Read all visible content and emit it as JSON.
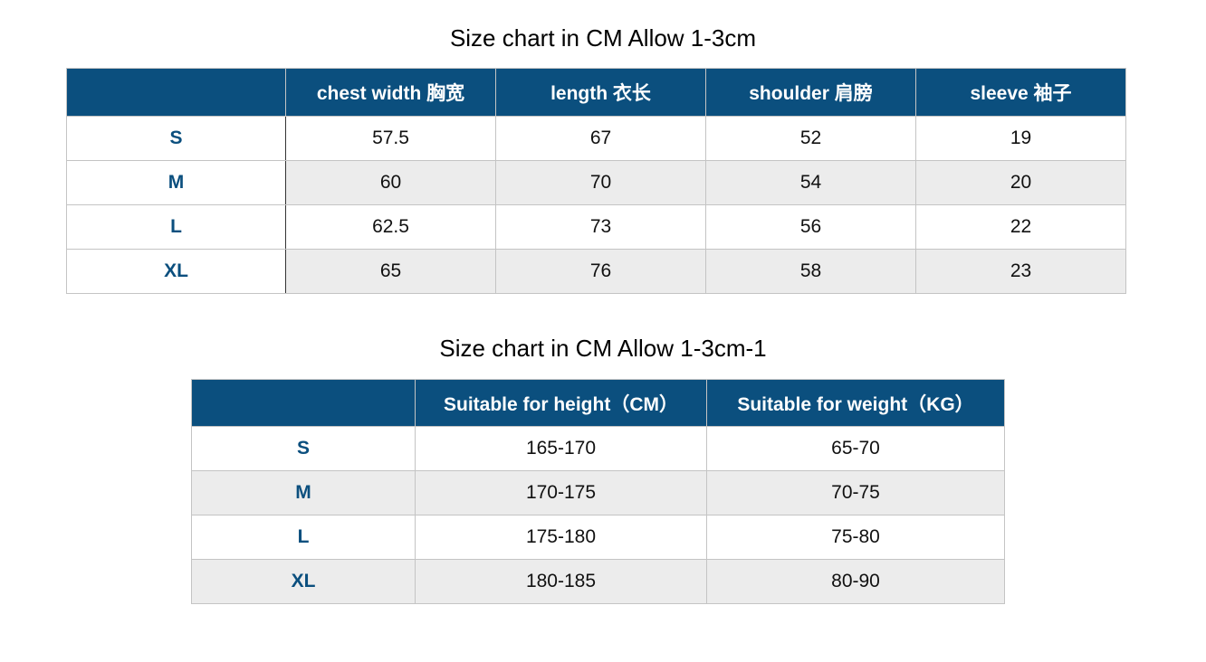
{
  "table1": {
    "title": "Size chart in CM Allow 1-3cm",
    "headers": [
      "",
      "chest width 胸宽",
      "length 衣长",
      "shoulder 肩膀",
      "sleeve 袖子"
    ],
    "rows": [
      [
        "S",
        "57.5",
        "67",
        "52",
        "19"
      ],
      [
        "M",
        "60",
        "70",
        "54",
        "20"
      ],
      [
        "L",
        "62.5",
        "73",
        "56",
        "22"
      ],
      [
        "XL",
        "65",
        "76",
        "58",
        "23"
      ]
    ]
  },
  "table2": {
    "title": "Size chart in CM Allow 1-3cm-1",
    "headers": [
      "",
      "Suitable for height（CM）",
      "Suitable for weight（KG）"
    ],
    "rows": [
      [
        "S",
        "165-170",
        "65-70"
      ],
      [
        "M",
        "170-175",
        "70-75"
      ],
      [
        "L",
        "175-180",
        "75-80"
      ],
      [
        "XL",
        "180-185",
        "80-90"
      ]
    ]
  },
  "colors": {
    "header_bg": "#0b4f7e",
    "size_text": "#0b4f7e",
    "stripe": "#ececec"
  }
}
